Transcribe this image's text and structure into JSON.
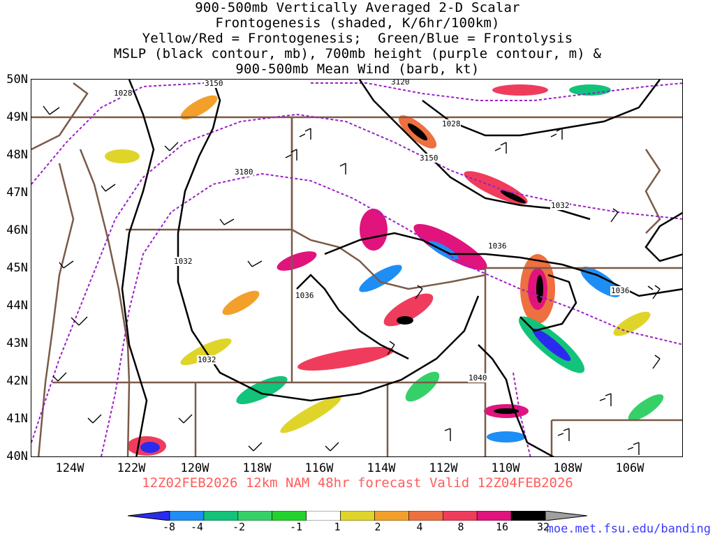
{
  "title": {
    "line1": "900-500mb Vertically Averaged 2-D Scalar",
    "line2": "Frontogenesis (shaded, K/6hr/100km)",
    "line3": "Yellow/Red = Frontogenesis;  Green/Blue = Frontolysis",
    "line4": "MSLP (black contour, mb), 700mb height (purple contour, m) &",
    "line5": "900-500mb Mean Wind (barb, kt)"
  },
  "axes": {
    "lat_labels": [
      "50N",
      "49N",
      "48N",
      "47N",
      "46N",
      "45N",
      "44N",
      "43N",
      "42N",
      "41N",
      "40N"
    ],
    "lon_labels": [
      "124W",
      "122W",
      "120W",
      "118W",
      "116W",
      "114W",
      "112W",
      "110W",
      "108W",
      "106W"
    ]
  },
  "contour_labels": {
    "mslp": [
      "1028",
      "1028",
      "1032",
      "1032",
      "1036",
      "1036",
      "1036",
      "1032",
      "1040"
    ],
    "height": [
      "3150",
      "3150",
      "3180",
      "3120"
    ]
  },
  "valid_line": "12Z02FEB2026 12km NAM 48hr forecast Valid 12Z04FEB2026",
  "colorbar": {
    "labels": [
      "-8",
      "-4",
      "-2",
      "-1",
      "1",
      "2",
      "4",
      "8",
      "16",
      "32"
    ],
    "colors": [
      "#2b2bf0",
      "#1e8ef5",
      "#12c37a",
      "#36d068",
      "#22d32b",
      "#ffffff",
      "#dfd52a",
      "#f2a02a",
      "#ee7040",
      "#f03c5c",
      "#e0147c",
      "#000000",
      "#a0a0a0"
    ]
  },
  "colors": {
    "mslp_contour": "#000000",
    "height_contour": "#9b1fc8",
    "borders": "#7a5a48",
    "valid_text": "#ff5c5c",
    "url_text": "#3a3aff"
  },
  "footer": {
    "url": "moe.met.fsu.edu/banding"
  }
}
